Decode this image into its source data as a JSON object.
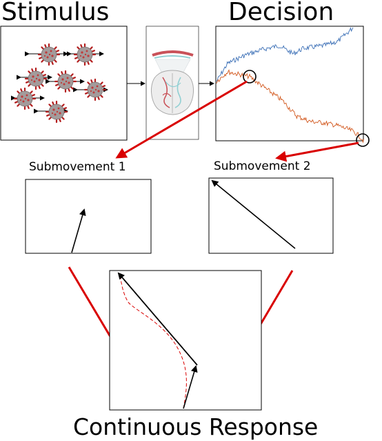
{
  "titles": {
    "stimulus": "Stimulus",
    "decision": "Decision",
    "submovement_1": "Submovement 1",
    "submovement_2": "Submovement 2",
    "continuous_response": "Continuous Response"
  },
  "colors": {
    "red_arrow": "#d90000",
    "trace_blue": "#3b6fb6",
    "trace_orange": "#d2571c",
    "virus_body": "#9a8f8f",
    "virus_spike": "#b31d1d",
    "brain_red": "#c0353d",
    "brain_cyan": "#7ec8cc"
  },
  "icons": {
    "virus": "virus-particle-icon",
    "brain": "brain-icon"
  }
}
